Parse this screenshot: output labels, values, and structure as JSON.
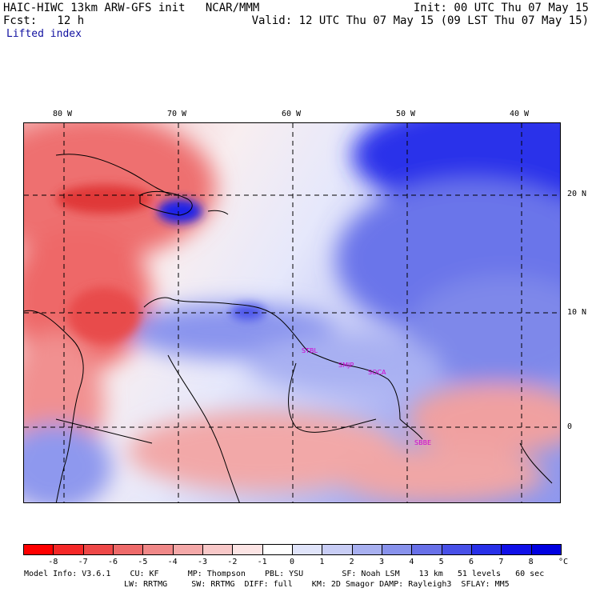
{
  "header": {
    "model_line": "HAIC-HIWC 13km ARW-GFS init   NCAR/MMM",
    "fcst_line": "Fcst:   12 h",
    "field": "Lifted index",
    "init_line": "Init: 00 UTC Thu 07 May 15",
    "valid_line": "Valid: 12 UTC Thu 07 May 15 (09 LST Thu 07 May 15)"
  },
  "map": {
    "lon_labels": [
      "80 W",
      "70 W",
      "60 W",
      "50 W",
      "40 W"
    ],
    "lat_labels": [
      "20 N",
      "10 N",
      "0"
    ],
    "cities": [
      "STBL",
      "SMJP",
      "SOCA",
      "SBBE"
    ]
  },
  "colorbar": {
    "unit": "°C",
    "labels": [
      "-8",
      "-7",
      "-6",
      "-5",
      "-4",
      "-3",
      "-2",
      "-1",
      "0",
      "1",
      "2",
      "3",
      "4",
      "5",
      "6",
      "7",
      "8"
    ],
    "colors": [
      "#ff0000",
      "#f52828",
      "#ee4848",
      "#ee6a6a",
      "#f08888",
      "#f4a8a8",
      "#f8c8c8",
      "#fce4e4",
      "#ffffff",
      "#e0e4fa",
      "#c8cdf5",
      "#a8b0f0",
      "#8892ec",
      "#6870e8",
      "#4850e8",
      "#2830e8",
      "#1010e8",
      "#0000e0"
    ]
  },
  "footer": {
    "line1": "Model Info: V3.6.1    CU: KF      MP: Thompson    PBL: YSU        SF: Noah LSM    13 km   51 levels   60 sec",
    "line2": "LW: RRTMG     SW: RRTMG  DIFF: full    KM: 2D Smagor DAMP: Rayleigh3  SFLAY: MM5"
  }
}
